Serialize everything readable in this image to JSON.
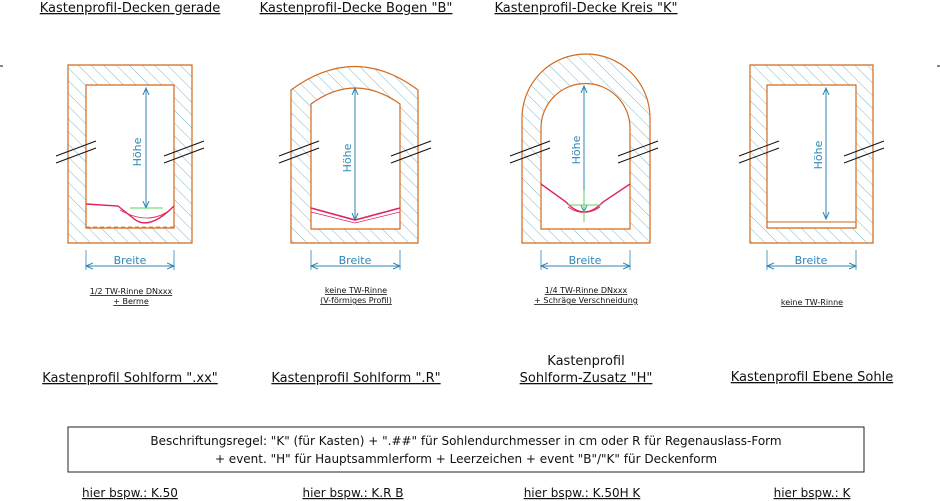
{
  "titles_top": [
    "Kastenprofil-Decken gerade",
    "Kastenprofil-Decke Bogen \"B\"",
    "Kastenprofil-Decke Kreis \"K\""
  ],
  "dim_height": "Höhe",
  "dim_width": "Breite",
  "channel_notes": [
    [
      "1/2  TW-Rinne DNxxx",
      "+ Berme"
    ],
    [
      "keine TW-Rinne",
      "(V-förmiges Profil)"
    ],
    [
      "1/4  TW-Rinne DNxxx",
      "+ Schräge Verschneidung"
    ],
    [
      "keine TW-Rinne"
    ]
  ],
  "titles_bottom": [
    [
      "Kastenprofil Sohlform \".xx\""
    ],
    [
      "Kastenprofil Sohlform \".R\""
    ],
    [
      "Kastenprofil",
      "Sohlform-Zusatz \"H\""
    ],
    [
      "Kastenprofil Ebene Sohle"
    ]
  ],
  "rule_lines": [
    "Beschriftungsregel:  \"K\" (für Kasten) + \".##\" für Sohlendurchmesser in cm oder R für Regenauslass-Form",
    "+ event. \"H\" für Hauptsammlerform + Leerzeichen + event \"B\"/\"K\" für Deckenform"
  ],
  "examples": [
    "hier bspw.: K.50",
    "hier bspw.: K.R B",
    "hier bspw.: K.50H K",
    "hier bspw.: K"
  ],
  "colors": {
    "wall": "#d2691e",
    "hatch": "#7fb9c9",
    "dimension": "#2e86b5",
    "channel": "#e0245e",
    "axis": "#5fd35f"
  }
}
